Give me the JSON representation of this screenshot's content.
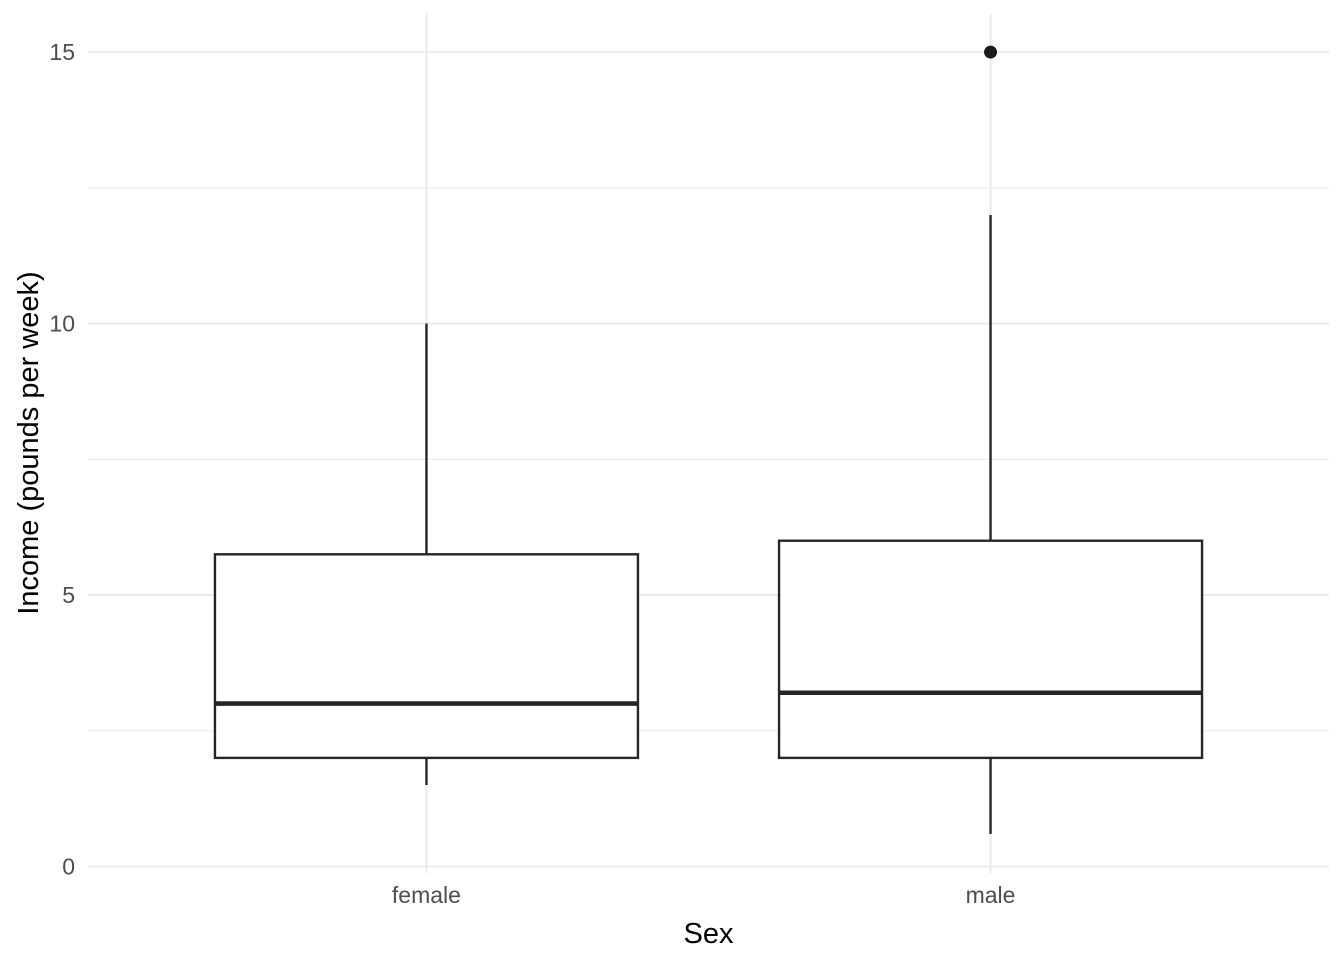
{
  "chart_data": {
    "type": "boxplot",
    "title": "",
    "xlabel": "Sex",
    "ylabel": "Income (pounds per week)",
    "categories": [
      "female",
      "male"
    ],
    "y_ticks": [
      0,
      5,
      10,
      15
    ],
    "y_minor_gridlines": [
      2.5,
      7.5,
      12.5
    ],
    "ylim": [
      -0.12,
      15.72
    ],
    "grid": true,
    "legend": "none",
    "series": [
      {
        "category": "female",
        "whisker_low": 1.5,
        "q1": 2,
        "median": 3,
        "q3": 5.75,
        "whisker_high": 10,
        "outliers": []
      },
      {
        "category": "male",
        "whisker_low": 0.6,
        "q1": 2,
        "median": 3.2,
        "q3": 6,
        "whisker_high": 12,
        "outliers": [
          15
        ]
      }
    ],
    "style": {
      "background_color": "#ffffff",
      "grid_color": "#ebebeb",
      "box_stroke_color": "#262626",
      "box_fill_color": "#ffffff",
      "outlier_color": "#1a1a1a",
      "tick_label_color": "#4d4d4d",
      "axis_title_color": "#000000"
    }
  }
}
